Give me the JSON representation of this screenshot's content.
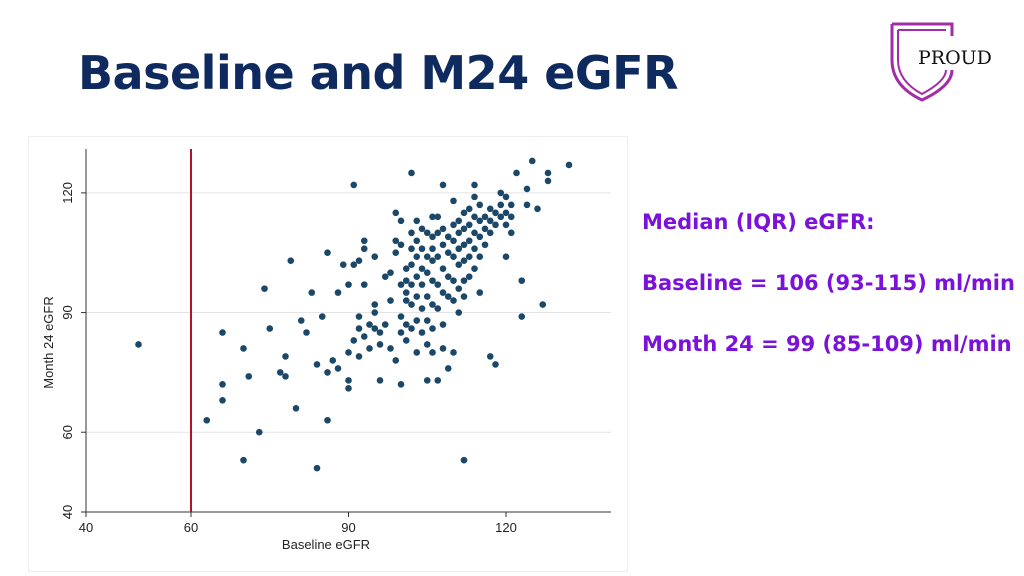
{
  "slide": {
    "title": "Baseline and M24 eGFR"
  },
  "logo": {
    "text": "PROUD",
    "color": "#a12ea6"
  },
  "stats": {
    "heading": "Median (IQR) eGFR:",
    "baseline": "Baseline = 106 (93-115) ml/min",
    "month24": "Month 24 = 99 (85-109) ml/min",
    "color": "#7a12d9"
  },
  "chart_data": {
    "type": "scatter",
    "title": "",
    "xlabel": "Baseline eGFR",
    "ylabel": "Month 24 eGFR",
    "xlim": [
      40,
      140
    ],
    "ylim": [
      40,
      130
    ],
    "xticks": [
      40,
      60,
      90,
      120
    ],
    "yticks": [
      40,
      60,
      90,
      120
    ],
    "grid": true,
    "reference_line": {
      "axis": "x",
      "value": 60,
      "color": "#b0142c"
    },
    "marker_color": "#1b4868",
    "points": [
      [
        50,
        82
      ],
      [
        63,
        63
      ],
      [
        66,
        68
      ],
      [
        66,
        72
      ],
      [
        66,
        85
      ],
      [
        70,
        81
      ],
      [
        70,
        53
      ],
      [
        71,
        74
      ],
      [
        73,
        60
      ],
      [
        74,
        96
      ],
      [
        75,
        86
      ],
      [
        77,
        75
      ],
      [
        78,
        79
      ],
      [
        78,
        74
      ],
      [
        79,
        103
      ],
      [
        80,
        66
      ],
      [
        81,
        88
      ],
      [
        82,
        85
      ],
      [
        83,
        95
      ],
      [
        84,
        51
      ],
      [
        84,
        77
      ],
      [
        85,
        89
      ],
      [
        86,
        63
      ],
      [
        86,
        75
      ],
      [
        86,
        105
      ],
      [
        87,
        78
      ],
      [
        88,
        76
      ],
      [
        88,
        95
      ],
      [
        89,
        102
      ],
      [
        90,
        97
      ],
      [
        90,
        73
      ],
      [
        90,
        80
      ],
      [
        90,
        71
      ],
      [
        91,
        83
      ],
      [
        91,
        102
      ],
      [
        91,
        122
      ],
      [
        92,
        86
      ],
      [
        92,
        103
      ],
      [
        92,
        89
      ],
      [
        92,
        79
      ],
      [
        93,
        108
      ],
      [
        93,
        106
      ],
      [
        93,
        97
      ],
      [
        93,
        84
      ],
      [
        94,
        87
      ],
      [
        94,
        81
      ],
      [
        95,
        104
      ],
      [
        95,
        86
      ],
      [
        95,
        92
      ],
      [
        95,
        90
      ],
      [
        96,
        85
      ],
      [
        96,
        82
      ],
      [
        96,
        73
      ],
      [
        97,
        99
      ],
      [
        97,
        87
      ],
      [
        98,
        100
      ],
      [
        98,
        93
      ],
      [
        98,
        81
      ],
      [
        99,
        108
      ],
      [
        99,
        105
      ],
      [
        99,
        78
      ],
      [
        99,
        115
      ],
      [
        100,
        113
      ],
      [
        100,
        107
      ],
      [
        100,
        97
      ],
      [
        100,
        89
      ],
      [
        100,
        85
      ],
      [
        100,
        72
      ],
      [
        101,
        101
      ],
      [
        101,
        98
      ],
      [
        101,
        95
      ],
      [
        101,
        93
      ],
      [
        101,
        87
      ],
      [
        101,
        83
      ],
      [
        102,
        110
      ],
      [
        102,
        106
      ],
      [
        102,
        102
      ],
      [
        102,
        97
      ],
      [
        102,
        92
      ],
      [
        102,
        86
      ],
      [
        102,
        125
      ],
      [
        103,
        113
      ],
      [
        103,
        108
      ],
      [
        103,
        104
      ],
      [
        103,
        99
      ],
      [
        103,
        94
      ],
      [
        103,
        88
      ],
      [
        103,
        80
      ],
      [
        104,
        111
      ],
      [
        104,
        106
      ],
      [
        104,
        101
      ],
      [
        104,
        97
      ],
      [
        104,
        91
      ],
      [
        104,
        85
      ],
      [
        105,
        110
      ],
      [
        105,
        104
      ],
      [
        105,
        100
      ],
      [
        105,
        94
      ],
      [
        105,
        88
      ],
      [
        105,
        82
      ],
      [
        105,
        73
      ],
      [
        106,
        114
      ],
      [
        106,
        109
      ],
      [
        106,
        106
      ],
      [
        106,
        103
      ],
      [
        106,
        98
      ],
      [
        106,
        92
      ],
      [
        106,
        86
      ],
      [
        106,
        80
      ],
      [
        107,
        114
      ],
      [
        107,
        110
      ],
      [
        107,
        104
      ],
      [
        107,
        97
      ],
      [
        107,
        91
      ],
      [
        107,
        73
      ],
      [
        108,
        111
      ],
      [
        108,
        107
      ],
      [
        108,
        101
      ],
      [
        108,
        95
      ],
      [
        108,
        87
      ],
      [
        108,
        81
      ],
      [
        108,
        122
      ],
      [
        109,
        109
      ],
      [
        109,
        105
      ],
      [
        109,
        99
      ],
      [
        109,
        94
      ],
      [
        109,
        76
      ],
      [
        110,
        112
      ],
      [
        110,
        108
      ],
      [
        110,
        104
      ],
      [
        110,
        98
      ],
      [
        110,
        93
      ],
      [
        110,
        80
      ],
      [
        110,
        118
      ],
      [
        111,
        113
      ],
      [
        111,
        110
      ],
      [
        111,
        106
      ],
      [
        111,
        102
      ],
      [
        111,
        96
      ],
      [
        111,
        90
      ],
      [
        112,
        115
      ],
      [
        112,
        111
      ],
      [
        112,
        107
      ],
      [
        112,
        103
      ],
      [
        112,
        98
      ],
      [
        112,
        94
      ],
      [
        112,
        53
      ],
      [
        113,
        116
      ],
      [
        113,
        112
      ],
      [
        113,
        108
      ],
      [
        113,
        104
      ],
      [
        113,
        99
      ],
      [
        114,
        119
      ],
      [
        114,
        114
      ],
      [
        114,
        110
      ],
      [
        114,
        106
      ],
      [
        114,
        101
      ],
      [
        114,
        122
      ],
      [
        115,
        117
      ],
      [
        115,
        113
      ],
      [
        115,
        109
      ],
      [
        115,
        104
      ],
      [
        115,
        95
      ],
      [
        116,
        114
      ],
      [
        116,
        111
      ],
      [
        116,
        107
      ],
      [
        117,
        116
      ],
      [
        117,
        113
      ],
      [
        117,
        110
      ],
      [
        117,
        79
      ],
      [
        118,
        115
      ],
      [
        118,
        112
      ],
      [
        118,
        77
      ],
      [
        119,
        120
      ],
      [
        119,
        117
      ],
      [
        119,
        114
      ],
      [
        120,
        119
      ],
      [
        120,
        115
      ],
      [
        120,
        112
      ],
      [
        120,
        104
      ],
      [
        121,
        117
      ],
      [
        121,
        114
      ],
      [
        121,
        110
      ],
      [
        122,
        125
      ],
      [
        123,
        98
      ],
      [
        123,
        89
      ],
      [
        124,
        121
      ],
      [
        124,
        117
      ],
      [
        125,
        128
      ],
      [
        126,
        116
      ],
      [
        127,
        92
      ],
      [
        128,
        123
      ],
      [
        128,
        125
      ],
      [
        132,
        127
      ]
    ]
  }
}
